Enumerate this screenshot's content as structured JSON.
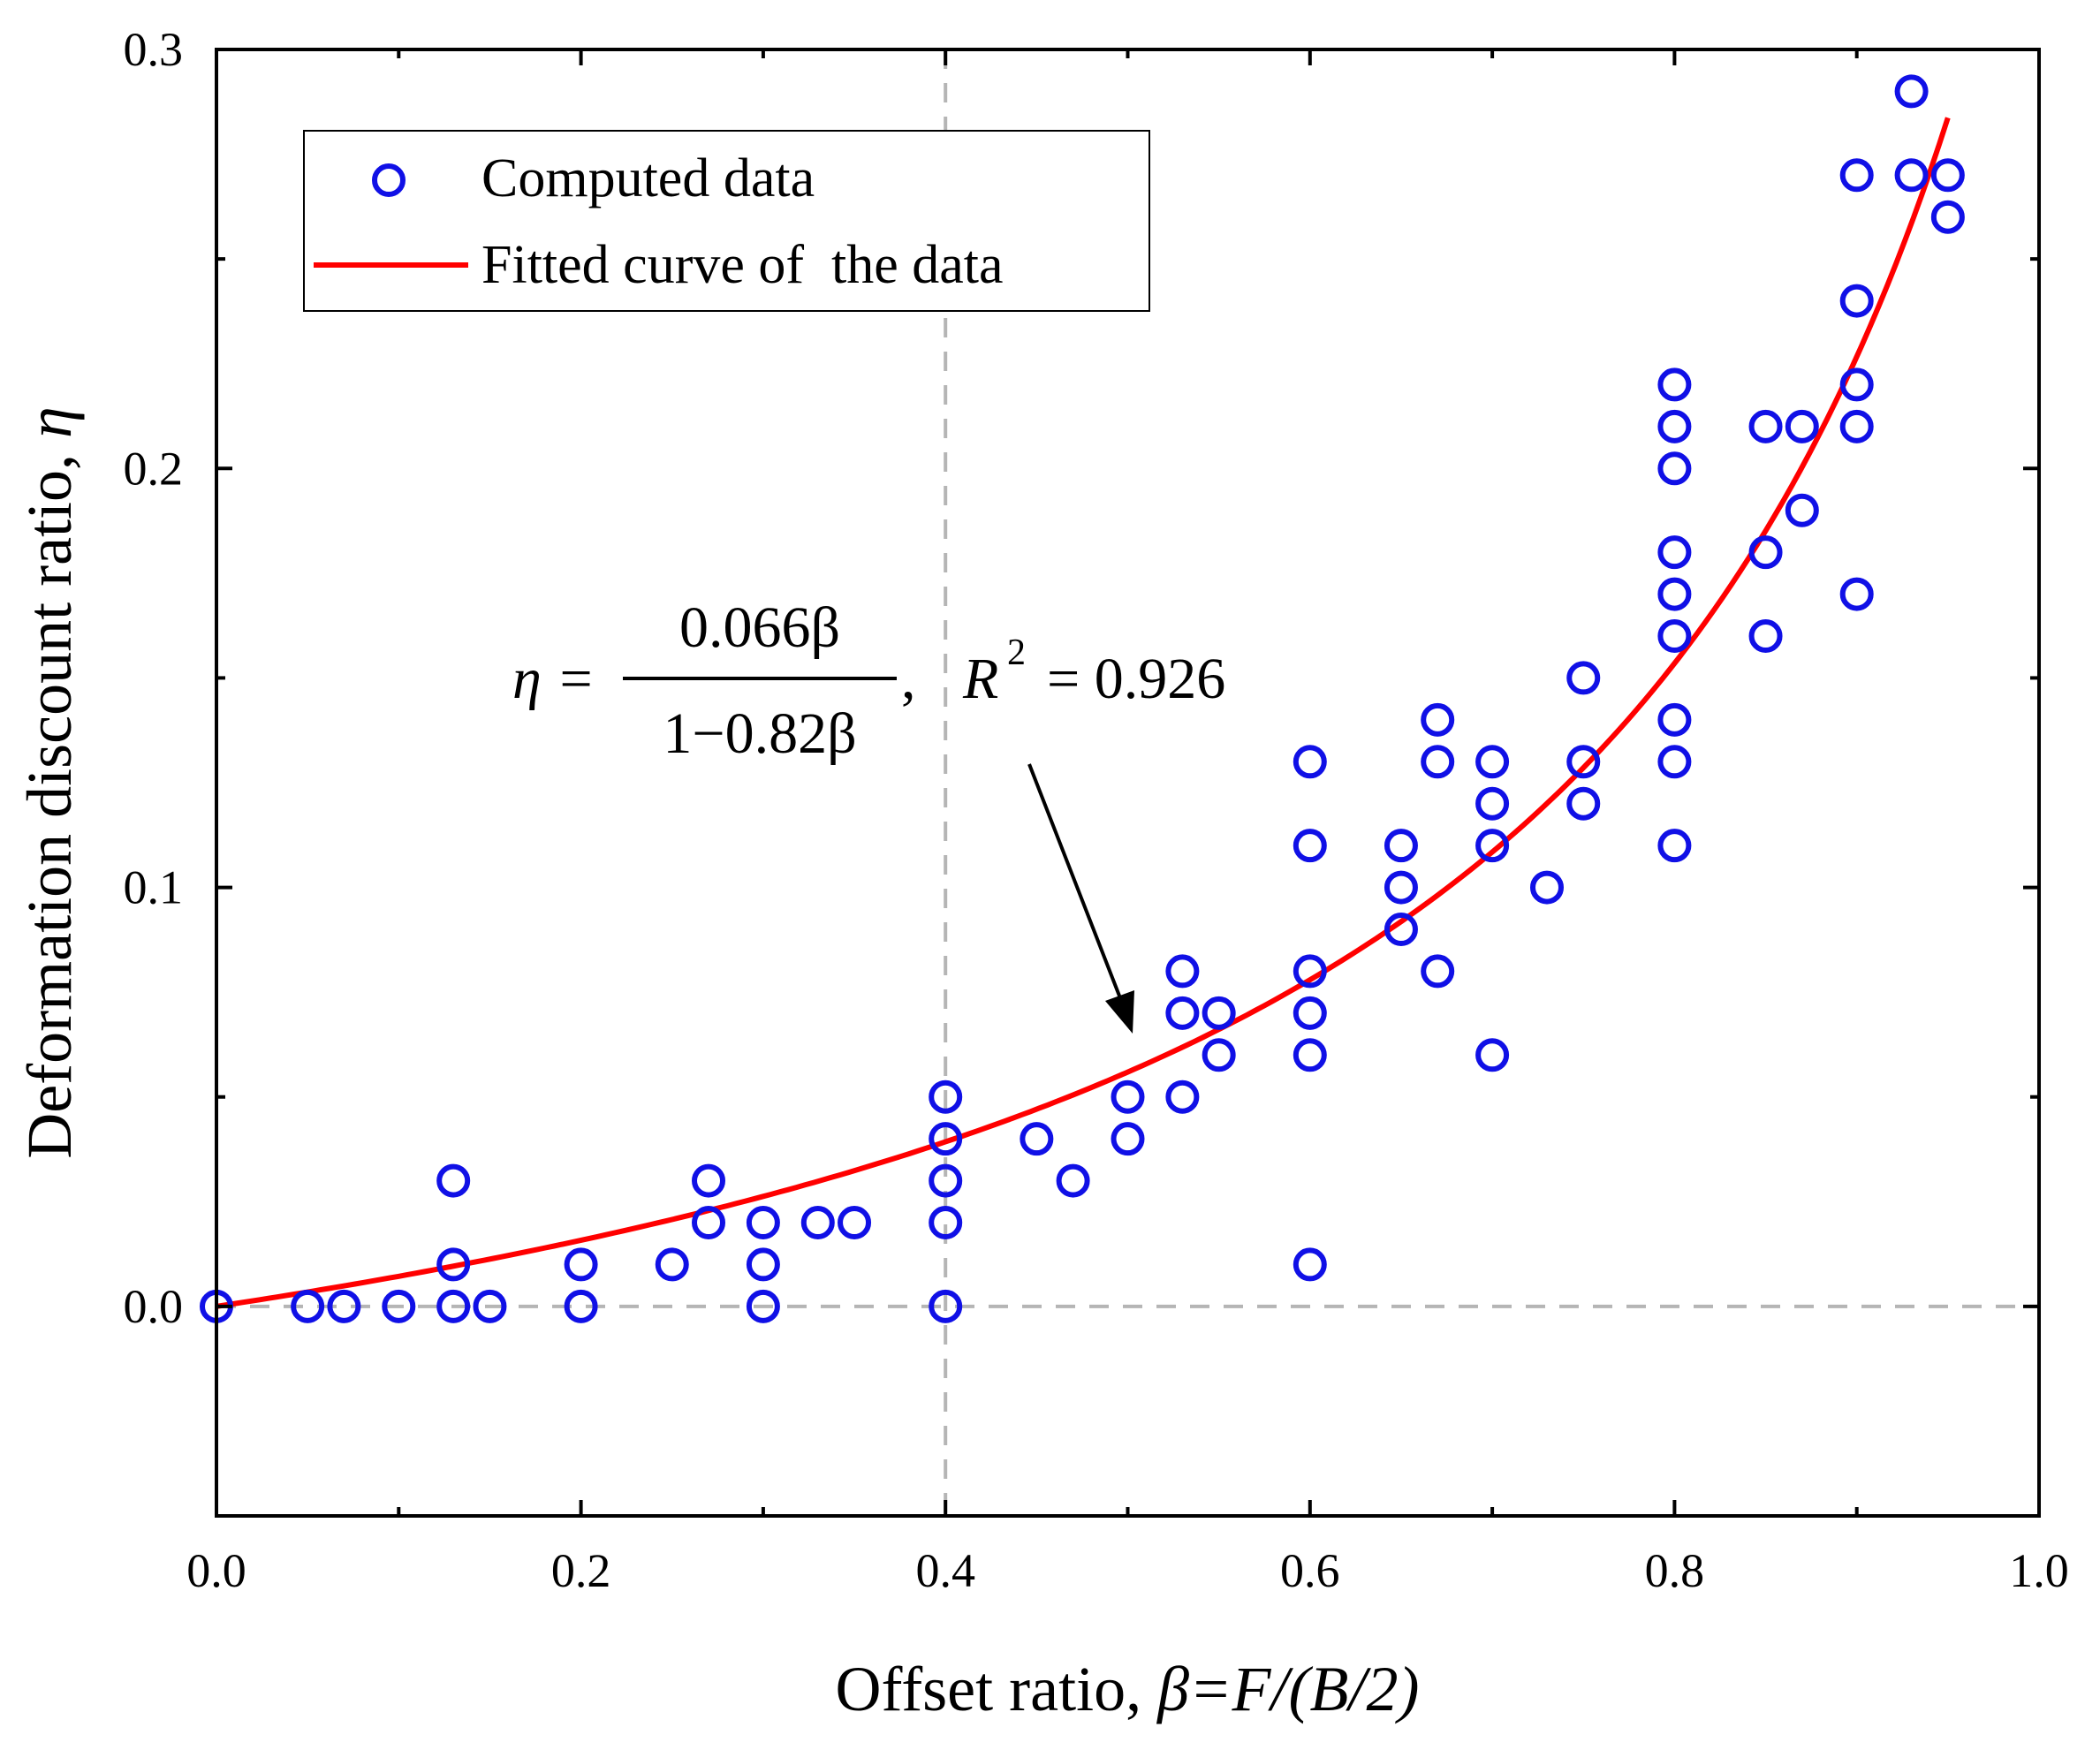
{
  "chart_data": {
    "type": "scatter",
    "title": "",
    "xlabel_prefix": "Offset ratio, ",
    "xlabel_math": "β=F/(B/2)",
    "ylabel_prefix": "Deformation discount ratio, ",
    "ylabel_math": "η",
    "xlim": [
      0.0,
      1.0
    ],
    "ylim": [
      -0.05,
      0.3
    ],
    "x_ticks": [
      "0.0",
      "0.2",
      "0.4",
      "0.6",
      "0.8",
      "1.0"
    ],
    "y_ticks": [
      "0.0",
      "0.1",
      "0.2",
      "0.3"
    ],
    "reference_lines": {
      "x": 0.4,
      "y": 0.0
    },
    "legend": {
      "position": "top-left",
      "entries": [
        "Computed data",
        "Fitted curve of  the data"
      ]
    },
    "series": [
      {
        "name": "Computed data",
        "kind": "scatter",
        "color": "#1010e6",
        "points": [
          [
            0.0,
            0.0
          ],
          [
            0.05,
            0.0
          ],
          [
            0.07,
            0.0
          ],
          [
            0.1,
            0.0
          ],
          [
            0.13,
            0.0
          ],
          [
            0.15,
            0.0
          ],
          [
            0.13,
            0.01
          ],
          [
            0.13,
            0.03
          ],
          [
            0.2,
            0.0
          ],
          [
            0.2,
            0.01
          ],
          [
            0.25,
            0.01
          ],
          [
            0.27,
            0.02
          ],
          [
            0.27,
            0.03
          ],
          [
            0.3,
            0.0
          ],
          [
            0.3,
            0.01
          ],
          [
            0.3,
            0.02
          ],
          [
            0.33,
            0.02
          ],
          [
            0.35,
            0.02
          ],
          [
            0.4,
            0.0
          ],
          [
            0.4,
            0.02
          ],
          [
            0.4,
            0.03
          ],
          [
            0.4,
            0.04
          ],
          [
            0.4,
            0.05
          ],
          [
            0.45,
            0.04
          ],
          [
            0.47,
            0.03
          ],
          [
            0.5,
            0.04
          ],
          [
            0.5,
            0.05
          ],
          [
            0.53,
            0.05
          ],
          [
            0.53,
            0.07
          ],
          [
            0.53,
            0.08
          ],
          [
            0.55,
            0.06
          ],
          [
            0.55,
            0.07
          ],
          [
            0.6,
            0.01
          ],
          [
            0.6,
            0.06
          ],
          [
            0.6,
            0.07
          ],
          [
            0.6,
            0.08
          ],
          [
            0.6,
            0.11
          ],
          [
            0.6,
            0.13
          ],
          [
            0.65,
            0.09
          ],
          [
            0.65,
            0.1
          ],
          [
            0.65,
            0.11
          ],
          [
            0.67,
            0.08
          ],
          [
            0.67,
            0.13
          ],
          [
            0.67,
            0.14
          ],
          [
            0.7,
            0.06
          ],
          [
            0.7,
            0.11
          ],
          [
            0.7,
            0.12
          ],
          [
            0.7,
            0.13
          ],
          [
            0.73,
            0.1
          ],
          [
            0.75,
            0.12
          ],
          [
            0.75,
            0.13
          ],
          [
            0.75,
            0.15
          ],
          [
            0.8,
            0.11
          ],
          [
            0.8,
            0.13
          ],
          [
            0.8,
            0.14
          ],
          [
            0.8,
            0.16
          ],
          [
            0.8,
            0.17
          ],
          [
            0.8,
            0.18
          ],
          [
            0.8,
            0.2
          ],
          [
            0.8,
            0.21
          ],
          [
            0.8,
            0.22
          ],
          [
            0.85,
            0.16
          ],
          [
            0.85,
            0.18
          ],
          [
            0.85,
            0.21
          ],
          [
            0.87,
            0.19
          ],
          [
            0.87,
            0.21
          ],
          [
            0.9,
            0.17
          ],
          [
            0.9,
            0.21
          ],
          [
            0.9,
            0.22
          ],
          [
            0.9,
            0.24
          ],
          [
            0.9,
            0.27
          ],
          [
            0.93,
            0.27
          ],
          [
            0.93,
            0.29
          ],
          [
            0.95,
            0.26
          ],
          [
            0.95,
            0.27
          ]
        ]
      },
      {
        "name": "Fitted curve of  the data",
        "kind": "line",
        "color": "#ff0000",
        "equation": "η = 0.066β / (1 − 0.82β)",
        "x_range": [
          0.0,
          0.95
        ]
      }
    ],
    "annotation": {
      "lhs": "η =",
      "numerator": "0.066β",
      "denominator": "1−0.82β",
      "comma": ",",
      "r2_label": "R",
      "r2_exp": "2",
      "r2_value": "= 0.926"
    }
  }
}
